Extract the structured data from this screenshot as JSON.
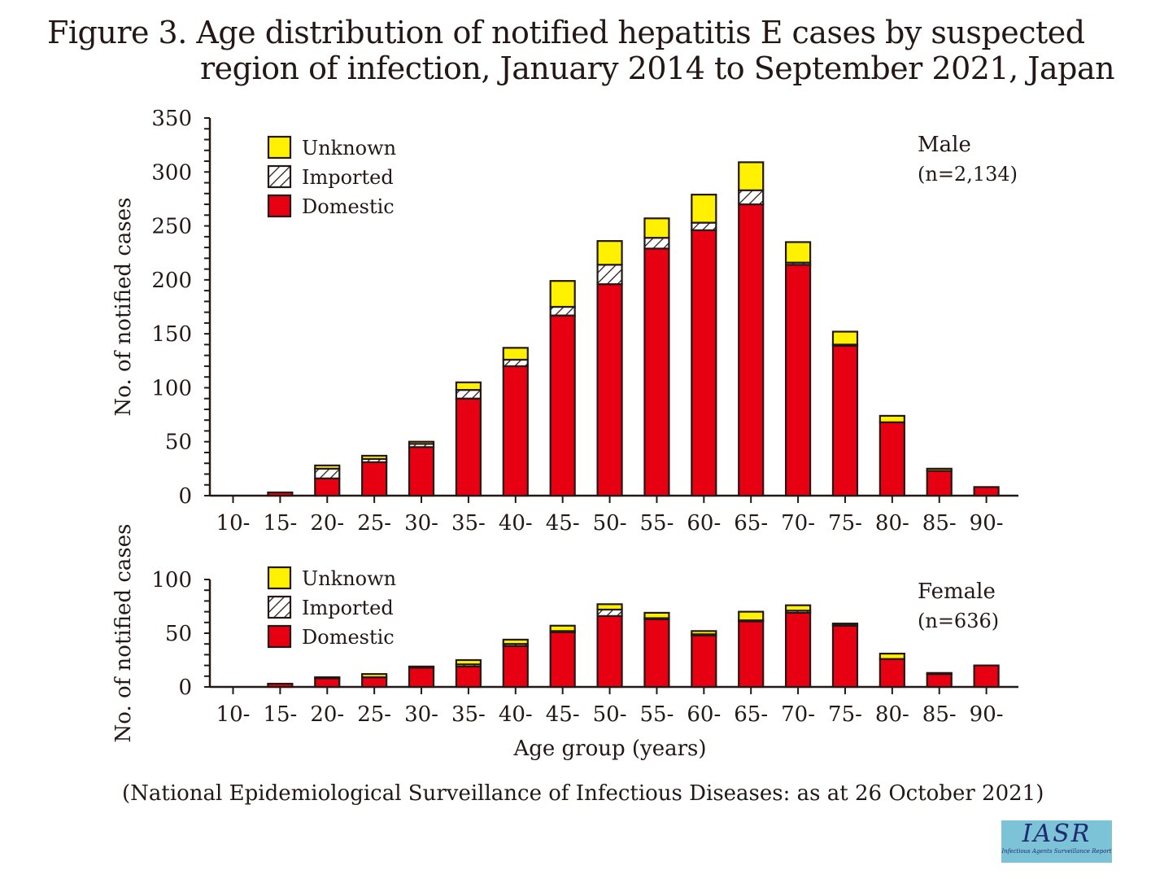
{
  "title_line1": "Figure 3. Age distribution of notified hepatitis E cases by suspected",
  "title_line2": "region of infection, January 2014 to September 2021, Japan",
  "source": "(National Epidemiological Surveillance of Infectious Diseases: as at 26 October 2021)",
  "logo": {
    "text": "IASR",
    "subtitle": "Infectious Agents Surveillance Report",
    "bg_color": "#7cc3d8"
  },
  "colors": {
    "unknown": "#fff100",
    "imported": "#ffffff",
    "domestic": "#e60012",
    "outline": "#231815"
  },
  "chart_data": [
    {
      "type": "bar",
      "stacked": true,
      "panel": "Male",
      "panel_label": "Male",
      "panel_n": "(n=2,134)",
      "categories": [
        "10-",
        "15-",
        "20-",
        "25-",
        "30-",
        "35-",
        "40-",
        "45-",
        "50-",
        "55-",
        "60-",
        "65-",
        "70-",
        "75-",
        "80-",
        "85-",
        "90-"
      ],
      "series": [
        {
          "name": "Domestic",
          "values": [
            0,
            3,
            16,
            31,
            45,
            90,
            120,
            167,
            196,
            229,
            246,
            270,
            214,
            139,
            68,
            23,
            8
          ]
        },
        {
          "name": "Imported",
          "values": [
            0,
            0,
            9,
            3,
            3,
            8,
            6,
            8,
            18,
            10,
            7,
            13,
            2,
            1,
            0,
            0,
            0
          ]
        },
        {
          "name": "Unknown",
          "values": [
            0,
            0,
            3,
            3,
            2,
            7,
            11,
            24,
            22,
            18,
            26,
            26,
            19,
            12,
            6,
            2,
            0
          ]
        }
      ],
      "legend": [
        "Unknown",
        "Imported",
        "Domestic"
      ],
      "legend_position": "top-left",
      "xlabel": "",
      "ylabel": "No. of notified cases",
      "ylim": [
        0,
        350
      ],
      "yticks": [
        0,
        50,
        100,
        150,
        200,
        250,
        300,
        350
      ],
      "grid": false
    },
    {
      "type": "bar",
      "stacked": true,
      "panel": "Female",
      "panel_label": "Female",
      "panel_n": "(n=636)",
      "categories": [
        "10-",
        "15-",
        "20-",
        "25-",
        "30-",
        "35-",
        "40-",
        "45-",
        "50-",
        "55-",
        "60-",
        "65-",
        "70-",
        "75-",
        "80-",
        "85-",
        "90-"
      ],
      "series": [
        {
          "name": "Domestic",
          "values": [
            0,
            3,
            8,
            9,
            18,
            19,
            38,
            51,
            66,
            63,
            48,
            61,
            69,
            57,
            26,
            12,
            20
          ]
        },
        {
          "name": "Imported",
          "values": [
            0,
            0,
            0,
            0,
            0,
            2,
            2,
            1,
            6,
            1,
            1,
            1,
            2,
            1,
            0,
            0,
            0
          ]
        },
        {
          "name": "Unknown",
          "values": [
            0,
            0,
            1,
            3,
            1,
            4,
            4,
            5,
            5,
            5,
            3,
            8,
            5,
            1,
            5,
            1,
            0
          ]
        }
      ],
      "legend": [
        "Unknown",
        "Imported",
        "Domestic"
      ],
      "legend_position": "top-left",
      "xlabel": "Age group (years)",
      "ylabel": "No. of notified cases",
      "ylim": [
        0,
        100
      ],
      "yticks": [
        0,
        50,
        100
      ],
      "grid": false
    }
  ]
}
